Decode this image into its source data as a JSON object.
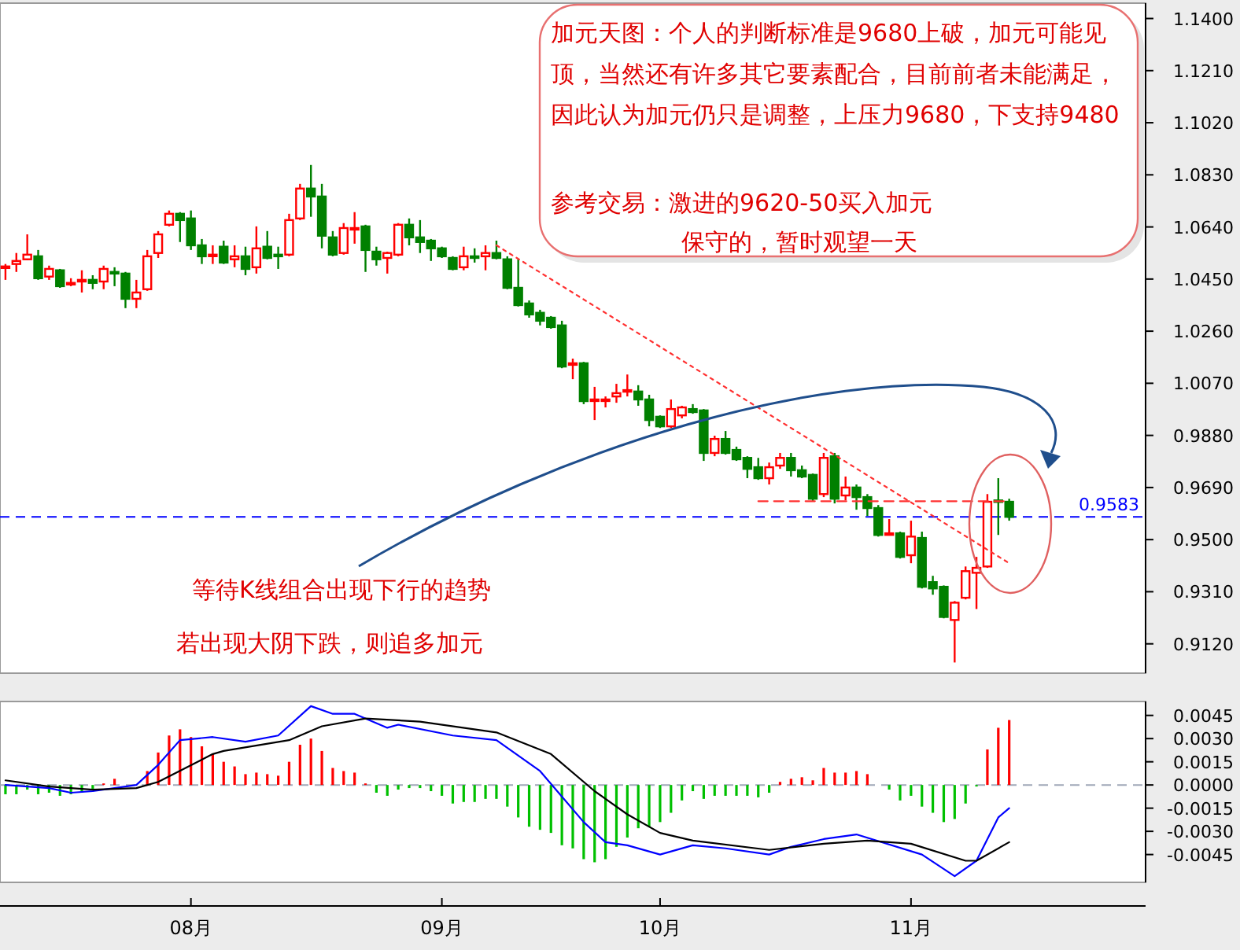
{
  "chart_data": [
    {
      "type": "candlestick",
      "categories": [
        null,
        null,
        null,
        null,
        null,
        null,
        null,
        null,
        null,
        null,
        null,
        null,
        null,
        null,
        null,
        null,
        null,
        null,
        null,
        null,
        null,
        null,
        null,
        null,
        null,
        null,
        null,
        null,
        null,
        null,
        null,
        null,
        null,
        null,
        null,
        null,
        null,
        null,
        null,
        null,
        null,
        null,
        null,
        null,
        null,
        null,
        null,
        null,
        null,
        null,
        null,
        null,
        null,
        null,
        null,
        null,
        null,
        null,
        null,
        null,
        null,
        null,
        null,
        null,
        null,
        null,
        null,
        null,
        null,
        null,
        null,
        null,
        null,
        null,
        null,
        null,
        null,
        null,
        null,
        null,
        null,
        null,
        null,
        null,
        null,
        null,
        null,
        null,
        null,
        null,
        null,
        null,
        null,
        null,
        null,
        null,
        null,
        null,
        null,
        null,
        null,
        null,
        null,
        null,
        null
      ],
      "ohlc": [
        [
          1.0493,
          1.0505,
          1.0447,
          1.0496
        ],
        [
          1.0505,
          1.0545,
          1.0476,
          1.0516
        ],
        [
          1.0522,
          1.0613,
          1.0519,
          1.0539
        ],
        [
          1.0533,
          1.0556,
          1.0447,
          1.0453
        ],
        [
          1.0459,
          1.0499,
          1.0447,
          1.0487
        ],
        [
          1.0482,
          1.0487,
          1.0418,
          1.0424
        ],
        [
          1.0433,
          1.0453,
          1.0424,
          1.0436
        ],
        [
          1.0441,
          1.0482,
          1.0401,
          1.0447
        ],
        [
          1.0447,
          1.0464,
          1.0413,
          1.0436
        ],
        [
          1.0441,
          1.0499,
          1.0413,
          1.0487
        ],
        [
          1.0476,
          1.0493,
          1.0424,
          1.047
        ],
        [
          1.047,
          1.0476,
          1.0344,
          1.0378
        ],
        [
          1.0378,
          1.0447,
          1.0344,
          1.0401
        ],
        [
          1.0413,
          1.0556,
          1.0407,
          1.0533
        ],
        [
          1.0545,
          1.0625,
          1.0527,
          1.0613
        ],
        [
          1.0648,
          1.07,
          1.0642,
          1.0688
        ],
        [
          1.0688,
          1.0694,
          1.0585,
          1.0665
        ],
        [
          1.0671,
          1.07,
          1.0556,
          1.0573
        ],
        [
          1.0573,
          1.0596,
          1.0505,
          1.0533
        ],
        [
          1.0536,
          1.0573,
          1.0505,
          1.0539
        ],
        [
          1.0568,
          1.059,
          1.0505,
          1.051
        ],
        [
          1.0522,
          1.0573,
          1.0493,
          1.0533
        ],
        [
          1.0533,
          1.0568,
          1.0464,
          1.0487
        ],
        [
          1.0493,
          1.0642,
          1.047,
          1.0562
        ],
        [
          1.0568,
          1.0625,
          1.0522,
          1.0527
        ],
        [
          1.0539,
          1.0568,
          1.0487,
          1.0533
        ],
        [
          1.0539,
          1.0688,
          1.0533,
          1.0665
        ],
        [
          1.0671,
          1.0797,
          1.0665,
          1.078
        ],
        [
          1.078,
          1.0866,
          1.0677,
          1.0751
        ],
        [
          1.0751,
          1.0797,
          1.0562,
          1.0608
        ],
        [
          1.0602,
          1.0625,
          1.0533,
          1.0539
        ],
        [
          1.0545,
          1.0654,
          1.0539,
          1.0636
        ],
        [
          1.0633,
          1.0694,
          1.0579,
          1.0636
        ],
        [
          1.0642,
          1.0648,
          1.0476,
          1.0556
        ],
        [
          1.055,
          1.0568,
          1.0499,
          1.0522
        ],
        [
          1.0527,
          1.055,
          1.047,
          1.0545
        ],
        [
          1.0539,
          1.0654,
          1.0533,
          1.0648
        ],
        [
          1.0648,
          1.0671,
          1.0573,
          1.0602
        ],
        [
          1.0602,
          1.0665,
          1.0545,
          1.0585
        ],
        [
          1.059,
          1.0596,
          1.0516,
          1.0562
        ],
        [
          1.0562,
          1.0568,
          1.0527,
          1.0533
        ],
        [
          1.0527,
          1.0533,
          1.0482,
          1.0487
        ],
        [
          1.0493,
          1.0568,
          1.0482,
          1.0533
        ],
        [
          1.0533,
          1.0562,
          1.051,
          1.0527
        ],
        [
          1.0533,
          1.0573,
          1.0482,
          1.0545
        ],
        [
          1.0545,
          1.059,
          1.0522,
          1.0527
        ],
        [
          1.0522,
          1.0533,
          1.0413,
          1.0418
        ],
        [
          1.0418,
          1.0522,
          1.035,
          1.0355
        ],
        [
          1.0361,
          1.0372,
          1.0309,
          1.0321
        ],
        [
          1.0327,
          1.0338,
          1.0281,
          1.0298
        ],
        [
          1.0309,
          1.0315,
          1.0269,
          1.0275
        ],
        [
          1.0281,
          1.0298,
          1.0125,
          1.0131
        ],
        [
          1.014,
          1.016,
          1.0085,
          1.0143
        ],
        [
          1.0143,
          1.0148,
          0.9994,
          1.0005
        ],
        [
          1.0008,
          1.0057,
          0.9936,
          1.0011
        ],
        [
          1.0008,
          1.0022,
          0.9982,
          1.0011
        ],
        [
          1.0022,
          1.0068,
          0.9999,
          1.0034
        ],
        [
          1.0042,
          1.0102,
          1.0022,
          1.0045
        ],
        [
          1.004,
          1.0063,
          0.9988,
          1.0011
        ],
        [
          1.0011,
          1.0028,
          0.9913,
          0.9936
        ],
        [
          0.9948,
          0.9953,
          0.9907,
          0.9913
        ],
        [
          0.9913,
          1.0011,
          0.9907,
          0.9976
        ],
        [
          0.9953,
          0.9988,
          0.9942,
          0.9982
        ],
        [
          0.9976,
          0.9994,
          0.9959,
          0.9965
        ],
        [
          0.9971,
          0.9976,
          0.9787,
          0.9816
        ],
        [
          0.9816,
          0.9879,
          0.9804,
          0.9867
        ],
        [
          0.9867,
          0.9896,
          0.981,
          0.9816
        ],
        [
          0.9827,
          0.9839,
          0.9787,
          0.9793
        ],
        [
          0.9798,
          0.9804,
          0.9724,
          0.9758
        ],
        [
          0.9764,
          0.9798,
          0.9718,
          0.9724
        ],
        [
          0.9724,
          0.9781,
          0.9701,
          0.9764
        ],
        [
          0.977,
          0.9816,
          0.9758,
          0.9798
        ],
        [
          0.9798,
          0.9816,
          0.973,
          0.9753
        ],
        [
          0.9753,
          0.977,
          0.9724,
          0.973
        ],
        [
          0.9736,
          0.9741,
          0.9638,
          0.9649
        ],
        [
          0.9666,
          0.9816,
          0.9655,
          0.9798
        ],
        [
          0.9804,
          0.9816,
          0.9632,
          0.9649
        ],
        [
          0.9661,
          0.973,
          0.9643,
          0.969
        ],
        [
          0.969,
          0.9701,
          0.9609,
          0.9655
        ],
        [
          0.9655,
          0.9666,
          0.9586,
          0.9615
        ],
        [
          0.9615,
          0.9626,
          0.9511,
          0.9517
        ],
        [
          0.952,
          0.9575,
          0.9517,
          0.9523
        ],
        [
          0.9523,
          0.9529,
          0.9431,
          0.9437
        ],
        [
          0.9443,
          0.9569,
          0.9414,
          0.9511
        ],
        [
          0.9506,
          0.9529,
          0.9322,
          0.9328
        ],
        [
          0.9345,
          0.9368,
          0.9299,
          0.9322
        ],
        [
          0.9328,
          0.9333,
          0.9213,
          0.9218
        ],
        [
          0.9207,
          0.9276,
          0.9052,
          0.927
        ],
        [
          0.9288,
          0.9402,
          0.9282,
          0.9385
        ],
        [
          0.9379,
          0.9437,
          0.9247,
          0.9397
        ],
        [
          0.9402,
          0.9666,
          0.9397,
          0.9638
        ],
        [
          0.9643,
          0.9724,
          0.9517,
          0.9638
        ],
        [
          0.9638,
          0.9649,
          0.9569,
          0.9583
        ],
        null,
        null,
        null,
        null,
        null,
        null,
        null,
        null,
        null,
        null,
        null,
        null
      ],
      "series": [
        {
          "type": "line",
          "color": "#ff3030",
          "line_style": "dotted",
          "values": [
            null,
            null,
            null,
            null,
            null,
            null,
            null,
            null,
            null,
            null,
            null,
            null,
            null,
            null,
            null,
            null,
            null,
            null,
            null,
            null,
            null,
            null,
            null,
            null,
            null,
            null,
            null,
            null,
            null,
            null,
            null,
            null,
            null,
            null,
            null,
            null,
            null,
            null,
            null,
            null,
            null,
            null,
            null,
            null,
            null,
            1.0573,
            null,
            null,
            null,
            null,
            null,
            null,
            null,
            null,
            null,
            null,
            null,
            null,
            null,
            null,
            null,
            null,
            null,
            null,
            null,
            null,
            null,
            null,
            null,
            null,
            null,
            null,
            null,
            null,
            null,
            null,
            null,
            null,
            null,
            null,
            null,
            null,
            null,
            null,
            null,
            null,
            null,
            null,
            null,
            null,
            null,
            null,
            0.9414,
            null,
            null,
            null,
            null,
            null,
            null,
            null,
            null,
            null,
            null,
            null,
            null
          ]
        },
        {
          "type": "line",
          "color": "#ff3030",
          "line_style": "dashed",
          "values": [
            null,
            null,
            null,
            null,
            null,
            null,
            null,
            null,
            null,
            null,
            null,
            null,
            null,
            null,
            null,
            null,
            null,
            null,
            null,
            null,
            null,
            null,
            null,
            null,
            null,
            null,
            null,
            null,
            null,
            null,
            null,
            null,
            null,
            null,
            null,
            null,
            null,
            null,
            null,
            null,
            null,
            null,
            null,
            null,
            null,
            null,
            null,
            null,
            null,
            null,
            null,
            null,
            null,
            null,
            null,
            null,
            null,
            null,
            null,
            null,
            null,
            null,
            null,
            null,
            null,
            null,
            null,
            null,
            null,
            0.964,
            null,
            null,
            null,
            null,
            null,
            null,
            null,
            null,
            null,
            null,
            null,
            null,
            null,
            null,
            null,
            null,
            null,
            null,
            null,
            null,
            null,
            null,
            0.964,
            null,
            null,
            null,
            null,
            null,
            null,
            null,
            null,
            null,
            null,
            null,
            null
          ]
        }
      ],
      "ylim": [
        0.9013,
        1.1456
      ],
      "yticks": [
        {
          "value": 1.14,
          "label": "1.1400"
        },
        {
          "value": 1.121,
          "label": "1.1210"
        },
        {
          "value": 1.102,
          "label": "1.1020"
        },
        {
          "value": 1.083,
          "label": "1.0830"
        },
        {
          "value": 1.064,
          "label": "1.0640"
        },
        {
          "value": 1.045,
          "label": "1.0450"
        },
        {
          "value": 1.026,
          "label": "1.0260"
        },
        {
          "value": 1.007,
          "label": "1.0070"
        },
        {
          "value": 0.988,
          "label": "0.9880"
        },
        {
          "value": 0.969,
          "label": "0.9690"
        },
        {
          "value": 0.95,
          "label": "0.9500"
        },
        {
          "value": 0.931,
          "label": "0.9310"
        },
        {
          "value": 0.912,
          "label": "0.9120"
        }
      ],
      "tick_labels": "y",
      "ref_lines": [
        {
          "axis": "y",
          "value": 0.9583,
          "label": "0.9583",
          "color": "#0000ff",
          "line_style": "dashed"
        }
      ],
      "annotations": [
        "加元天图：个人的判断标准是9680上破，加元可能见顶，当然还有许多其它要素配合，目前前者未能满足，因此认为加元仍只是调整，上压力9680，下支持9480",
        "参考交易：激进的9620-50买入加元",
        "保守的，暂时观望一天",
        "等待K线组合出现下行的趋势",
        "若出现大阴下跌，则追多加元"
      ]
    },
    {
      "type": "bar",
      "categories": [
        null,
        null,
        null,
        null,
        null,
        null,
        null,
        null,
        null,
        null,
        null,
        null,
        null,
        null,
        null,
        null,
        null,
        "08月",
        null,
        null,
        null,
        null,
        null,
        null,
        null,
        null,
        null,
        null,
        null,
        null,
        null,
        null,
        null,
        null,
        null,
        null,
        null,
        null,
        null,
        null,
        "09月",
        null,
        null,
        null,
        null,
        null,
        null,
        null,
        null,
        null,
        null,
        null,
        null,
        null,
        null,
        null,
        null,
        null,
        null,
        null,
        "10月",
        null,
        null,
        null,
        null,
        null,
        null,
        null,
        null,
        null,
        null,
        null,
        null,
        null,
        null,
        null,
        null,
        null,
        null,
        null,
        null,
        null,
        null,
        "11月",
        null,
        null,
        null,
        null,
        null,
        null,
        null,
        null,
        null,
        null,
        null,
        null,
        null,
        null,
        null,
        null,
        null,
        null,
        null,
        null,
        null
      ],
      "series": [
        {
          "type": "bar",
          "colors": [
            "#00c000",
            "#00c000",
            "#00c000",
            "#00c000",
            "#00c000",
            "#00c000",
            "#00c000",
            "#00c000",
            "#00c000",
            "#ff0000",
            "#ff0000",
            null,
            "#00c000",
            "#ff0000",
            "#ff0000",
            "#ff0000",
            "#ff0000",
            "#ff0000",
            "#ff0000",
            "#ff0000",
            "#ff0000",
            "#ff0000",
            "#ff0000",
            "#ff0000",
            "#ff0000",
            "#ff0000",
            "#ff0000",
            "#ff0000",
            "#ff0000",
            "#ff0000",
            "#ff0000",
            "#ff0000",
            "#ff0000",
            "#ff0000",
            "#00c000",
            "#00c000",
            "#00c000",
            "#00c000",
            "#00c000",
            "#00c000",
            "#00c000",
            "#00c000",
            "#00c000",
            "#00c000",
            "#00c000",
            "#00c000",
            "#00c000",
            "#00c000",
            "#00c000",
            "#00c000",
            "#00c000",
            "#00c000",
            "#00c000",
            "#00c000",
            "#00c000",
            "#00c000",
            "#00c000",
            "#00c000",
            "#00c000",
            "#00c000",
            "#00c000",
            "#00c000",
            "#00c000",
            "#00c000",
            "#00c000",
            "#00c000",
            "#00c000",
            "#00c000",
            "#00c000",
            "#00c000",
            "#00c000",
            "#ff0000",
            "#ff0000",
            "#ff0000",
            "#ff0000",
            "#ff0000",
            "#ff0000",
            "#ff0000",
            "#ff0000",
            "#ff0000",
            "#00c000",
            "#00c000",
            "#00c000",
            "#00c000",
            "#00c000",
            "#00c000",
            "#00c000",
            "#00c000",
            "#00c000",
            "#00c000",
            "#ff0000",
            "#ff0000",
            "#ff0000",
            null,
            null,
            null,
            null,
            null,
            null,
            null,
            null,
            null,
            null,
            null,
            null
          ],
          "values": [
            -0.0006,
            -0.0006,
            -0.0003,
            -0.0006,
            -0.0005,
            -0.0007,
            -0.0006,
            -0.0005,
            -0.0003,
            0.0001,
            0.0004,
            null,
            0,
            0.0009,
            0.0021,
            0.0032,
            0.0036,
            0.0031,
            0.0025,
            0.002,
            0.0015,
            0.0012,
            0.0007,
            0.0008,
            0.0007,
            0.0006,
            0.0015,
            0.0026,
            0.003,
            0.0022,
            0.0011,
            0.0009,
            0.0008,
            0.0001,
            -0.0005,
            -0.0007,
            -0.0003,
            -0.0002,
            -0.0002,
            -0.0004,
            -0.0007,
            -0.0012,
            -0.0011,
            -0.0011,
            -0.0009,
            -0.0009,
            -0.0014,
            -0.0021,
            -0.0027,
            -0.0029,
            -0.0031,
            -0.0039,
            -0.0041,
            -0.0048,
            -0.005,
            -0.0048,
            -0.004,
            -0.0034,
            -0.0028,
            -0.0027,
            -0.0024,
            -0.0018,
            -0.001,
            -0.0004,
            -0.0009,
            -0.0007,
            -0.0007,
            -0.0007,
            -0.0007,
            -0.0008,
            -0.0005,
            0.0002,
            0.0004,
            0.0005,
            0.0003,
            0.0011,
            0.0008,
            0.0008,
            0.0009,
            0.0007,
            0,
            -0.0003,
            -0.001,
            -0.0007,
            -0.0014,
            -0.0018,
            -0.0024,
            -0.0022,
            -0.0012,
            -0.0001,
            0.0023,
            0.0037,
            0.0042,
            null,
            null,
            null,
            null,
            null,
            null,
            null,
            null,
            null,
            null,
            null,
            null
          ]
        },
        {
          "type": "line",
          "color": "#0000ff",
          "values": [
            0,
            null,
            null,
            null,
            -0.0002,
            null,
            -0.0005,
            null,
            -0.0004,
            null,
            -0.0002,
            null,
            0,
            null,
            0.0013,
            null,
            0.0029,
            null,
            null,
            0.0031,
            null,
            null,
            0.0028,
            null,
            null,
            0.0032,
            null,
            null,
            0.0051,
            null,
            0.0046,
            null,
            0.0046,
            null,
            null,
            0.0037,
            0.0039,
            null,
            null,
            null,
            null,
            0.0032,
            null,
            null,
            null,
            0.0029,
            null,
            null,
            null,
            0.0009,
            null,
            null,
            null,
            -0.0024,
            null,
            -0.0037,
            null,
            -0.0039,
            null,
            null,
            -0.0045,
            null,
            null,
            -0.0039,
            null,
            null,
            -0.0041,
            null,
            null,
            null,
            -0.0045,
            null,
            -0.004,
            null,
            null,
            -0.0035,
            null,
            null,
            -0.0032,
            null,
            null,
            null,
            null,
            null,
            -0.0045,
            null,
            null,
            -0.0059,
            null,
            -0.0049,
            null,
            -0.0021,
            -0.0015,
            null,
            null,
            null,
            null,
            null,
            null,
            null,
            null,
            null,
            null,
            null,
            null
          ]
        },
        {
          "type": "line",
          "color": "#000000",
          "values": [
            0.0003,
            null,
            null,
            null,
            -0.0001,
            null,
            null,
            null,
            -0.0003,
            null,
            null,
            null,
            -0.0002,
            null,
            0.0002,
            null,
            null,
            null,
            null,
            0.002,
            0.0022,
            null,
            null,
            null,
            null,
            null,
            0.0029,
            null,
            null,
            0.0038,
            null,
            null,
            null,
            0.0043,
            null,
            null,
            null,
            null,
            0.0041,
            null,
            null,
            null,
            null,
            null,
            null,
            0.0034,
            null,
            null,
            null,
            null,
            0.002,
            null,
            null,
            null,
            -0.0004,
            null,
            null,
            -0.0019,
            null,
            null,
            -0.0031,
            null,
            null,
            -0.0036,
            null,
            null,
            null,
            null,
            null,
            null,
            -0.0042,
            null,
            null,
            null,
            null,
            -0.0038,
            null,
            null,
            null,
            -0.0036,
            null,
            null,
            null,
            -0.0038,
            null,
            null,
            null,
            null,
            -0.0049,
            -0.0049,
            null,
            null,
            -0.0037,
            null,
            null,
            null,
            null,
            null,
            null,
            null,
            null,
            null,
            null,
            null,
            null
          ]
        }
      ],
      "ylim": [
        -0.0063,
        0.0054
      ],
      "yticks": [
        {
          "value": 0.0045,
          "label": "0.0045"
        },
        {
          "value": 0.003,
          "label": "0.0030"
        },
        {
          "value": 0.0015,
          "label": "0.0015"
        },
        {
          "value": 0,
          "label": "0.0000"
        },
        {
          "value": -0.0015,
          "label": "-0.0015"
        },
        {
          "value": -0.003,
          "label": "-0.0030"
        },
        {
          "value": -0.0045,
          "label": "-0.0045"
        }
      ],
      "ref_lines": [
        {
          "axis": "y",
          "value": 0,
          "color": "#a0a8b8",
          "line_style": "dashed"
        }
      ]
    }
  ]
}
